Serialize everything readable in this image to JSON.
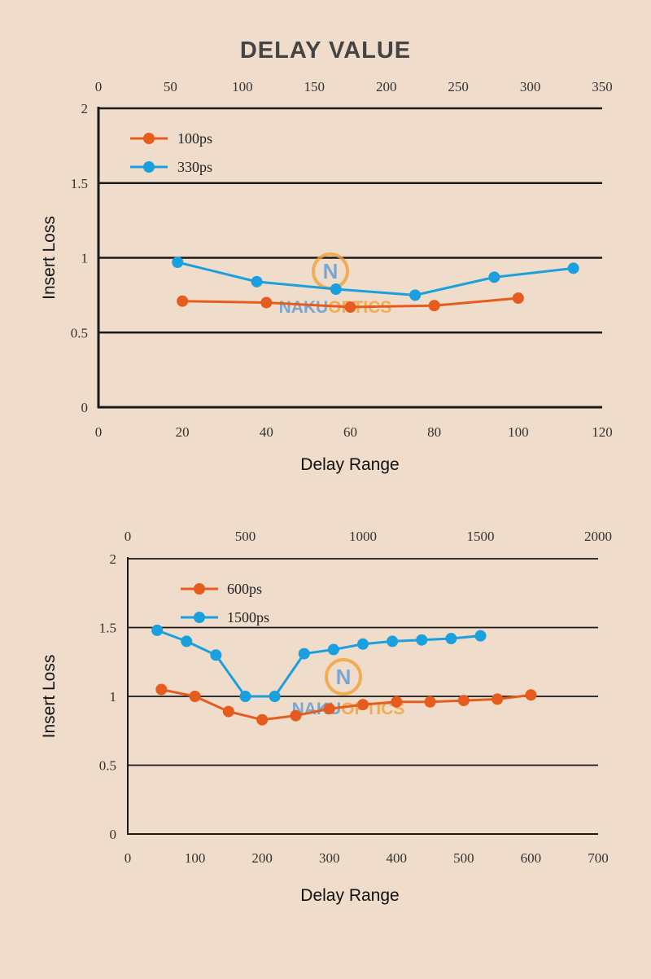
{
  "page": {
    "heading": "DELAY VALUE",
    "watermark": {
      "letter": "N",
      "text_left": "NAKU",
      "text_right": "OPTICS"
    }
  },
  "colors": {
    "background": "#efdcca",
    "series_orange": "#e65c1e",
    "series_blue": "#1aa0de",
    "axis": "#1a1a1a",
    "grid": "#1a1a1a",
    "tick_text": "#333333",
    "heading": "#444444",
    "watermark_orange": "#f2a23a",
    "watermark_blue": "#5b9bd5"
  },
  "chart_data": [
    {
      "type": "line",
      "ylabel": "Insert Loss",
      "xlabel": "Delay Range",
      "ylim": [
        0,
        2
      ],
      "yticks": [
        0,
        0.5,
        1,
        1.5,
        2
      ],
      "ytick_labels": [
        "0",
        "0.5",
        "1",
        "1.5",
        "2"
      ],
      "x_bottom": {
        "lim": [
          0,
          120
        ],
        "ticks": [
          0,
          20,
          40,
          60,
          80,
          100,
          120
        ],
        "labels": [
          "0",
          "20",
          "40",
          "60",
          "80",
          "100",
          "120"
        ]
      },
      "x_top": {
        "lim": [
          0,
          350
        ],
        "ticks": [
          0,
          50,
          100,
          150,
          200,
          250,
          300,
          350
        ],
        "labels": [
          "0",
          "50",
          "100",
          "150",
          "200",
          "250",
          "300",
          "350"
        ]
      },
      "grid": true,
      "legend": "top-left",
      "series": [
        {
          "name": "100ps",
          "color": "orange",
          "axis": "bottom",
          "x": [
            20,
            40,
            60,
            80,
            100
          ],
          "y": [
            0.71,
            0.7,
            0.67,
            0.68,
            0.73
          ]
        },
        {
          "name": "330ps",
          "color": "blue",
          "axis": "top",
          "x": [
            55,
            110,
            165,
            220,
            275,
            330
          ],
          "y": [
            0.97,
            0.84,
            0.79,
            0.75,
            0.87,
            0.93
          ]
        }
      ]
    },
    {
      "type": "line",
      "ylabel": "Insert Loss",
      "xlabel": "Delay Range",
      "ylim": [
        0,
        2
      ],
      "yticks": [
        0,
        0.5,
        1,
        1.5,
        2
      ],
      "ytick_labels": [
        "0",
        "0.5",
        "1",
        "1.5",
        "2"
      ],
      "x_bottom": {
        "lim": [
          0,
          700
        ],
        "ticks": [
          0,
          100,
          200,
          300,
          400,
          500,
          600,
          700
        ],
        "labels": [
          "0",
          "100",
          "200",
          "300",
          "400",
          "500",
          "600",
          "700"
        ]
      },
      "x_top": {
        "lim": [
          0,
          2000
        ],
        "ticks": [
          0,
          500,
          1000,
          1500,
          2000
        ],
        "labels": [
          "0",
          "500",
          "1000",
          "1500",
          "2000"
        ]
      },
      "grid": true,
      "legend": "top-left",
      "series": [
        {
          "name": "600ps",
          "color": "orange",
          "axis": "bottom",
          "x": [
            50,
            100,
            150,
            200,
            250,
            300,
            350,
            400,
            450,
            500,
            550,
            600
          ],
          "y": [
            1.05,
            1.0,
            0.89,
            0.83,
            0.86,
            0.91,
            0.94,
            0.96,
            0.96,
            0.97,
            0.98,
            1.01
          ]
        },
        {
          "name": "1500ps",
          "color": "blue",
          "axis": "top",
          "x": [
            125,
            250,
            375,
            500,
            625,
            750,
            875,
            1000,
            1125,
            1250,
            1375,
            1500
          ],
          "y": [
            1.48,
            1.4,
            1.3,
            1.0,
            1.0,
            1.31,
            1.34,
            1.38,
            1.4,
            1.41,
            1.42,
            1.44
          ]
        }
      ]
    }
  ]
}
